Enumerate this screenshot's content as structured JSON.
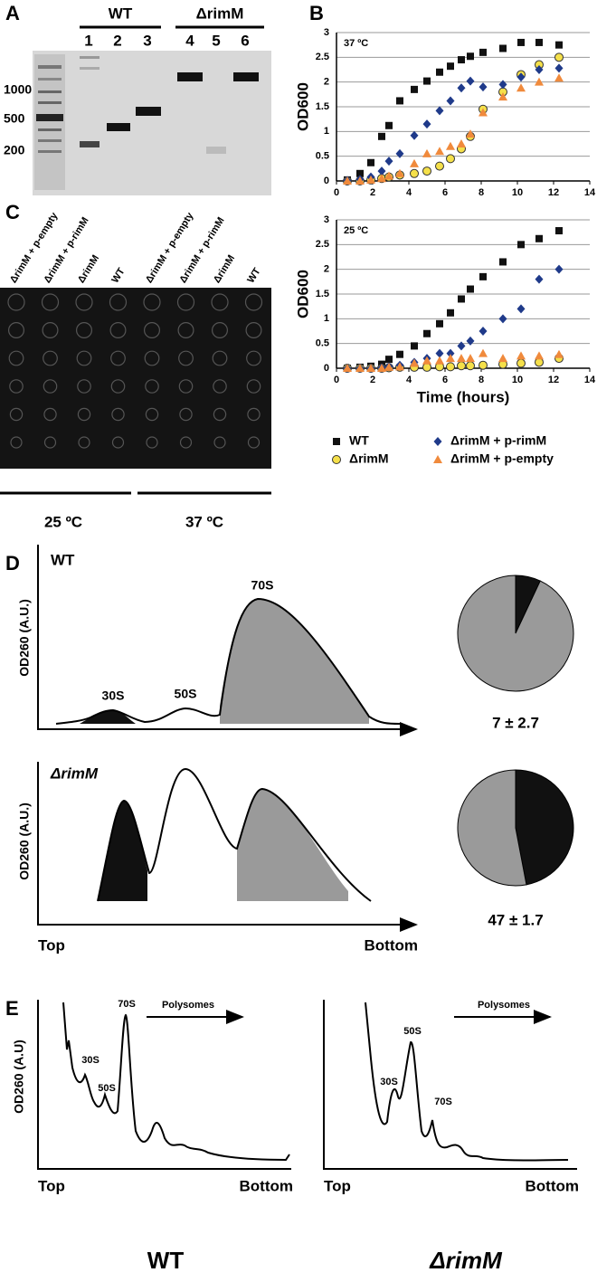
{
  "figure": {
    "panel_labels": [
      "A",
      "B",
      "C",
      "D",
      "E"
    ],
    "A": {
      "groups": [
        "WT",
        "ΔrimM"
      ],
      "lanes": [
        "1",
        "2",
        "3",
        "4",
        "5",
        "6"
      ],
      "ladder": [
        "1000",
        "500",
        "200"
      ]
    },
    "C": {
      "columns": [
        "ΔrimM + p-empty",
        "ΔrimM + p-rimM",
        "ΔrimM",
        "WT",
        "ΔrimM + p-empty",
        "ΔrimM + p-rimM",
        "ΔrimM",
        "WT"
      ],
      "temperatures": [
        "25 ºC",
        "37 ºC"
      ]
    },
    "D": {
      "y_label": "OD260 (A.U.)",
      "wt_title": "WT",
      "mutant_title": "ΔrimM",
      "peaks": [
        "30S",
        "50S",
        "70S"
      ],
      "x_start": "Top",
      "x_end": "Bottom"
    },
    "E": {
      "y_label": "OD260 (A.U)",
      "wt_peaks": [
        "30S",
        "50S",
        "70S"
      ],
      "mutant_peaks": [
        "30S",
        "50S",
        "70S"
      ],
      "polysomes": [
        "Polysomes",
        "Polysomes"
      ],
      "x_start": [
        "Top",
        "Top"
      ],
      "x_end": [
        "Bottom",
        "Bottom"
      ],
      "titles": [
        "WT",
        "ΔrimM"
      ]
    }
  },
  "chart_data": [
    {
      "type": "scatter",
      "title": "37 ºC",
      "y_label": "OD600",
      "x": [
        0.6,
        1.3,
        1.9,
        2.5,
        2.9,
        3.5,
        4.3,
        5.0,
        5.7,
        6.3,
        6.9,
        7.4,
        8.1,
        9.2,
        10.2,
        11.2,
        12.3
      ],
      "series": [
        {
          "name": "WT",
          "color": "#111111",
          "marker": "square",
          "values": [
            0.02,
            0.15,
            0.37,
            0.9,
            1.12,
            1.62,
            1.85,
            2.02,
            2.2,
            2.32,
            2.45,
            2.52,
            2.6,
            2.68,
            2.8,
            2.8,
            2.75
          ]
        },
        {
          "name": "ΔrimM",
          "color": "#f5e04a",
          "marker": "circle",
          "values": [
            0,
            0,
            0.02,
            0.05,
            0.08,
            0.12,
            0.15,
            0.2,
            0.3,
            0.45,
            0.65,
            0.9,
            1.45,
            1.8,
            2.15,
            2.35,
            2.5
          ]
        },
        {
          "name": "ΔrimM + p-rimM",
          "color": "#1f3a8a",
          "marker": "diamond",
          "values": [
            0.01,
            0.03,
            0.08,
            0.2,
            0.4,
            0.55,
            0.92,
            1.15,
            1.42,
            1.62,
            1.88,
            2.02,
            1.9,
            1.95,
            2.1,
            2.25,
            2.28
          ]
        },
        {
          "name": "ΔrimM + p-empty",
          "color": "#f08a3c",
          "marker": "triangle",
          "values": [
            0,
            0,
            0.02,
            0.05,
            0.1,
            0.15,
            0.35,
            0.55,
            0.6,
            0.7,
            0.75,
            0.95,
            1.38,
            1.7,
            1.88,
            2.0,
            2.08
          ]
        }
      ],
      "xlim": [
        0,
        14
      ],
      "xticks": [
        0,
        2,
        4,
        6,
        8,
        10,
        12,
        14
      ],
      "ylim": [
        0,
        3
      ],
      "yticks": [
        0,
        0.5,
        1,
        1.5,
        2,
        2.5,
        3
      ],
      "grid": true
    },
    {
      "type": "scatter",
      "title": "25 ºC",
      "y_label": "OD600",
      "x_label": "Time (hours)",
      "x": [
        0.6,
        1.3,
        1.9,
        2.5,
        2.9,
        3.5,
        4.3,
        5.0,
        5.7,
        6.3,
        6.9,
        7.4,
        8.1,
        9.2,
        10.2,
        11.2,
        12.3
      ],
      "series": [
        {
          "color": "#111111",
          "marker": "square",
          "values": [
            0,
            0.02,
            0.04,
            0.08,
            0.18,
            0.28,
            0.45,
            0.7,
            0.9,
            1.12,
            1.4,
            1.6,
            1.85,
            2.15,
            2.5,
            2.62,
            2.78
          ]
        },
        {
          "color": "#f5e04a",
          "marker": "circle",
          "values": [
            0,
            0,
            0,
            0,
            0.01,
            0.02,
            0.02,
            0.02,
            0.03,
            0.03,
            0.05,
            0.05,
            0.06,
            0.08,
            0.1,
            0.12,
            0.2
          ]
        },
        {
          "color": "#1f3a8a",
          "marker": "diamond",
          "values": [
            0,
            0,
            0,
            0.01,
            0.03,
            0.06,
            0.12,
            0.2,
            0.3,
            0.3,
            0.45,
            0.55,
            0.75,
            1.0,
            1.2,
            1.8,
            2.0
          ]
        },
        {
          "color": "#f08a3c",
          "marker": "triangle",
          "values": [
            0,
            0,
            0,
            0,
            0.02,
            0.03,
            0.1,
            0.15,
            0.15,
            0.2,
            0.2,
            0.2,
            0.3,
            0.2,
            0.25,
            0.25,
            0.28
          ]
        }
      ],
      "xlim": [
        0,
        14
      ],
      "xticks": [
        0,
        2,
        4,
        6,
        8,
        10,
        12,
        14
      ],
      "ylim": [
        0,
        3
      ],
      "yticks": [
        0,
        0.5,
        1,
        1.5,
        2,
        2.5,
        3
      ],
      "grid": true
    },
    {
      "type": "pie",
      "values": [
        7,
        93
      ],
      "colors": [
        "#111111",
        "#9a9a9a"
      ],
      "label": "7 ± 2.7"
    },
    {
      "type": "pie",
      "values": [
        47,
        53
      ],
      "colors": [
        "#111111",
        "#9a9a9a"
      ],
      "label": "47 ± 1.7"
    }
  ]
}
